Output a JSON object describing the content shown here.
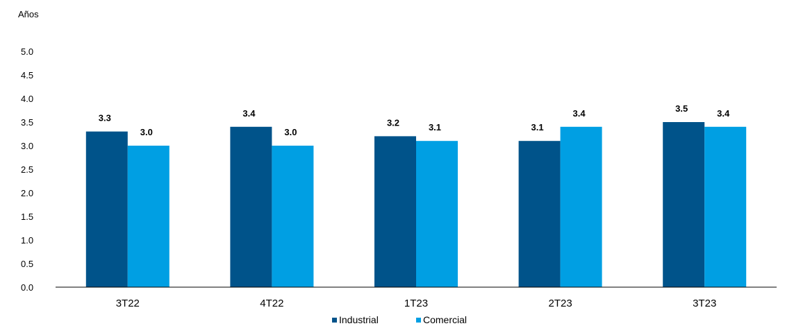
{
  "chart_data": {
    "type": "bar",
    "ylabel": "Años",
    "categories": [
      "3T22",
      "4T22",
      "1T23",
      "2T23",
      "3T23"
    ],
    "series": [
      {
        "name": "Industrial",
        "color": "#00538A",
        "values": [
          3.3,
          3.4,
          3.2,
          3.1,
          3.5
        ],
        "labels": [
          "3.3",
          "3.4",
          "3.2",
          "3.1",
          "3.5"
        ]
      },
      {
        "name": "Comercial",
        "color": "#009FE3",
        "values": [
          3.0,
          3.0,
          3.1,
          3.4,
          3.4
        ],
        "labels": [
          "3.0",
          "3.0",
          "3.1",
          "3.4",
          "3.4"
        ]
      }
    ],
    "ylim": [
      0,
      5
    ],
    "yticks": [
      "0.0",
      "0.5",
      "1.0",
      "1.5",
      "2.0",
      "2.5",
      "3.0",
      "3.5",
      "4.0",
      "4.5",
      "5.0"
    ],
    "grid": false,
    "legend_position": "bottom"
  }
}
